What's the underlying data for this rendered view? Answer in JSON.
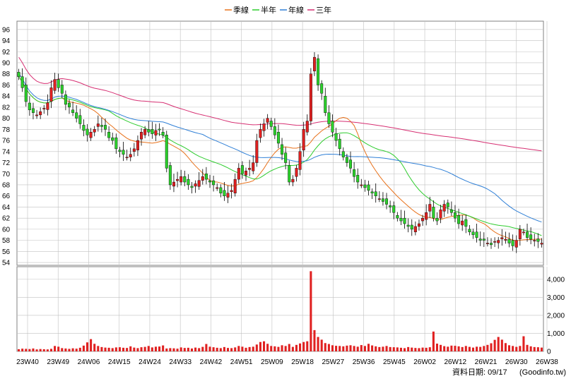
{
  "legend": [
    {
      "label": "季線",
      "color": "#e8721c"
    },
    {
      "label": "半年",
      "color": "#2ecc2e"
    },
    {
      "label": "年線",
      "color": "#2f7fd6"
    },
    {
      "label": "三年",
      "color": "#d62f72"
    }
  ],
  "credit": {
    "date_text": "資料日期: 09/17",
    "source_text": "(Goodinfo.tw)"
  },
  "colors": {
    "up_candle": "#e02020",
    "down_candle": "#2bd12b",
    "volume_bar": "#e02020",
    "grid": "#c0c0c0"
  },
  "chart_data": [
    {
      "type": "candlestick",
      "title": "",
      "x_tick_labels": [
        "23W40",
        "23W49",
        "24W06",
        "24W15",
        "24W24",
        "24W33",
        "24W42",
        "24W51",
        "25W09",
        "25W18",
        "25W27",
        "25W36",
        "25W45",
        "26W02",
        "26W12",
        "26W21",
        "26W30",
        "26W38"
      ],
      "y_ticks": [
        54,
        56,
        58,
        60,
        62,
        64,
        66,
        68,
        70,
        72,
        74,
        76,
        78,
        80,
        82,
        84,
        86,
        88,
        90,
        92,
        94,
        96
      ],
      "ylim": [
        53.5,
        97.5
      ],
      "grid": true,
      "legend_position": "top",
      "closes": [
        87.5,
        85.5,
        83.0,
        81.5,
        81.0,
        80.6,
        81.2,
        81.8,
        82.8,
        85.5,
        87.0,
        85.5,
        84.5,
        82.5,
        82.0,
        81.0,
        80.0,
        79.0,
        77.8,
        77.0,
        77.5,
        78.0,
        79.0,
        78.5,
        78.0,
        76.5,
        76.0,
        74.5,
        74.0,
        73.5,
        73.0,
        73.5,
        74.5,
        76.0,
        77.5,
        78.0,
        77.5,
        77.2,
        77.8,
        78.0,
        77.0,
        71.0,
        68.0,
        68.5,
        69.0,
        69.5,
        68.5,
        68.0,
        67.5,
        68.2,
        68.8,
        69.5,
        69.0,
        68.5,
        68.0,
        67.5,
        66.5,
        66.0,
        66.5,
        67.0,
        69.0,
        71.0,
        70.0,
        70.5,
        71.0,
        72.0,
        76.0,
        78.0,
        79.0,
        80.0,
        78.5,
        77.0,
        75.5,
        73.5,
        72.0,
        68.5,
        69.0,
        71.0,
        74.0,
        78.0,
        79.5,
        88.0,
        91.0,
        86.0,
        84.5,
        81.0,
        79.0,
        77.5,
        76.0,
        74.5,
        73.0,
        72.0,
        71.0,
        69.5,
        68.5,
        68.0,
        67.5,
        67.0,
        66.5,
        66.0,
        65.5,
        65.0,
        64.5,
        64.0,
        63.0,
        62.0,
        61.5,
        61.0,
        60.5,
        60.0,
        60.5,
        61.0,
        62.0,
        63.0,
        64.5,
        62.0,
        61.5,
        63.5,
        64.5,
        64.0,
        63.0,
        62.0,
        61.0,
        61.5,
        60.5,
        59.5,
        59.0,
        58.5,
        58.0,
        58.0,
        57.5,
        57.2,
        57.8,
        58.0,
        58.5,
        58.2,
        57.5,
        57.0,
        58.0,
        60.0,
        59.5,
        58.5,
        58.2,
        58.0,
        57.8,
        57.5
      ]
    },
    {
      "type": "bar",
      "title": "",
      "y_ticks": [
        0,
        1000,
        2000,
        3000,
        4000
      ],
      "y_tick_labels": [
        "0",
        "1,000",
        "2,000",
        "3,000",
        "4,000"
      ],
      "ylim": [
        0,
        4700
      ],
      "grid": true,
      "values": [
        120,
        150,
        140,
        130,
        160,
        110,
        130,
        120,
        110,
        140,
        300,
        260,
        180,
        160,
        140,
        170,
        150,
        200,
        320,
        500,
        680,
        420,
        300,
        240,
        210,
        200,
        180,
        220,
        230,
        200,
        190,
        280,
        210,
        180,
        230,
        250,
        300,
        220,
        260,
        270,
        330,
        160,
        180,
        170,
        150,
        220,
        190,
        200,
        160,
        210,
        180,
        250,
        410,
        260,
        230,
        200,
        180,
        240,
        190,
        180,
        220,
        300,
        260,
        200,
        240,
        260,
        380,
        520,
        560,
        420,
        300,
        280,
        250,
        340,
        300,
        410,
        250,
        360,
        440,
        520,
        560,
        4450,
        1180,
        800,
        650,
        460,
        410,
        340,
        310,
        300,
        280,
        320,
        340,
        300,
        260,
        350,
        300,
        420,
        330,
        280,
        240,
        260,
        300,
        240,
        230,
        220,
        200,
        180,
        240,
        210,
        190,
        180,
        210,
        200,
        230,
        1100,
        430,
        360,
        290,
        260,
        320,
        310,
        280,
        240,
        300,
        250,
        210,
        260,
        250,
        300,
        360,
        450,
        640,
        800,
        650,
        460,
        340,
        300,
        250,
        300,
        840,
        360,
        280,
        240,
        230,
        210
      ]
    }
  ]
}
